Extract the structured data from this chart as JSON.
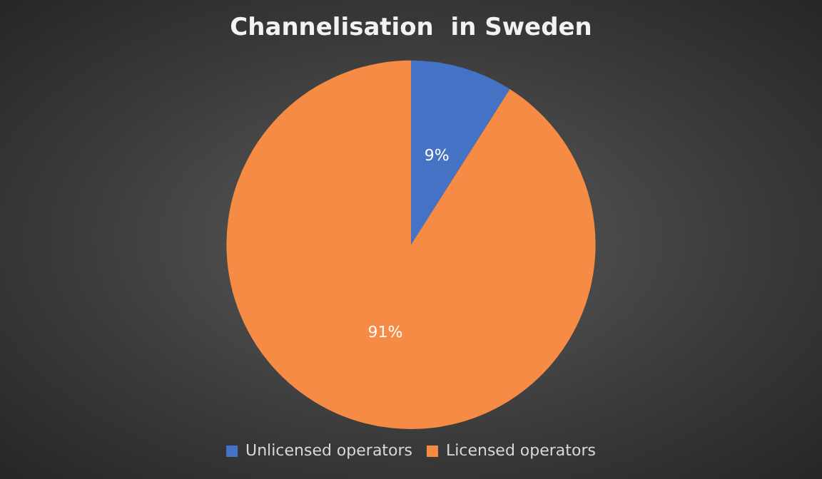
{
  "chart_data": {
    "type": "pie",
    "title": "Channelisation  in Sweden",
    "categories": [
      "Unlicensed operators",
      "Licensed operators"
    ],
    "values": [
      9,
      91
    ],
    "colors": [
      "#4472c4",
      "#f58b44"
    ],
    "value_labels": [
      "9%",
      "91%"
    ],
    "legend": "bottom"
  }
}
